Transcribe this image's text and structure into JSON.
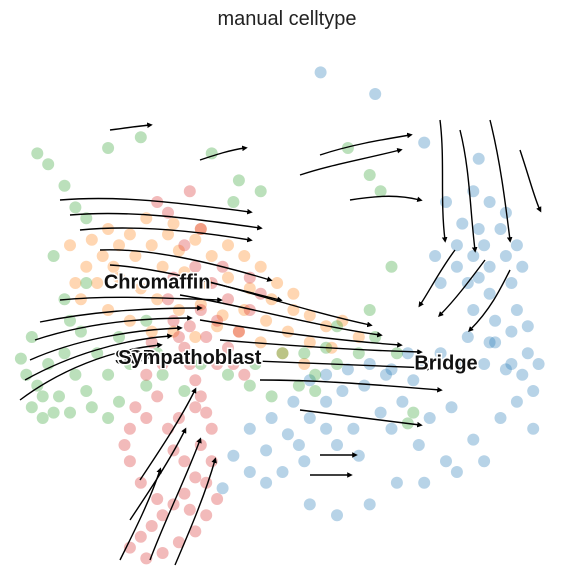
{
  "chart_data": {
    "type": "scatter",
    "title": "manual celltype",
    "xlabel": "",
    "ylabel": "",
    "axes_visible": false,
    "grid": false,
    "legend": "on data",
    "overlay": "velocity streamlines (black arrows)",
    "xlim": [
      0,
      100
    ],
    "ylim": [
      0,
      100
    ],
    "series": [
      {
        "name": "Bridge",
        "color": "#1f77b4",
        "label_position": [
          80,
          40
        ],
        "points": [
          [
            57,
            94
          ],
          [
            67,
            90
          ],
          [
            76,
            81
          ],
          [
            86,
            78
          ],
          [
            85,
            72
          ],
          [
            80,
            70
          ],
          [
            83,
            66
          ],
          [
            88,
            70
          ],
          [
            86,
            65
          ],
          [
            91,
            68
          ],
          [
            78,
            60
          ],
          [
            82,
            62
          ],
          [
            85,
            60
          ],
          [
            88,
            58
          ],
          [
            91,
            60
          ],
          [
            84,
            55
          ],
          [
            88,
            53
          ],
          [
            92,
            55
          ],
          [
            85,
            50
          ],
          [
            89,
            48
          ],
          [
            93,
            50
          ],
          [
            84,
            45
          ],
          [
            88,
            44
          ],
          [
            92,
            46
          ],
          [
            95,
            42
          ],
          [
            79,
            42
          ],
          [
            83,
            40
          ],
          [
            87,
            40
          ],
          [
            91,
            39
          ],
          [
            94,
            38
          ],
          [
            96,
            35
          ],
          [
            73,
            42
          ],
          [
            76,
            40
          ],
          [
            70,
            39
          ],
          [
            74,
            37
          ],
          [
            66,
            40
          ],
          [
            69,
            38
          ],
          [
            62,
            39
          ],
          [
            65,
            36
          ],
          [
            58,
            38
          ],
          [
            61,
            35
          ],
          [
            55,
            37
          ],
          [
            58,
            33
          ],
          [
            52,
            33
          ],
          [
            55,
            30
          ],
          [
            48,
            30
          ],
          [
            51,
            27
          ],
          [
            44,
            28
          ],
          [
            47,
            24
          ],
          [
            41,
            23
          ],
          [
            44,
            20
          ],
          [
            39,
            17
          ],
          [
            50,
            20
          ],
          [
            54,
            22
          ],
          [
            60,
            25
          ],
          [
            64,
            23
          ],
          [
            70,
            28
          ],
          [
            75,
            25
          ],
          [
            80,
            22
          ],
          [
            85,
            26
          ],
          [
            90,
            30
          ],
          [
            93,
            33
          ],
          [
            96,
            28
          ],
          [
            81,
            32
          ],
          [
            77,
            30
          ],
          [
            72,
            33
          ],
          [
            68,
            31
          ],
          [
            63,
            28
          ],
          [
            58,
            28
          ],
          [
            53,
            25
          ],
          [
            47,
            18
          ],
          [
            55,
            14
          ],
          [
            60,
            12
          ],
          [
            66,
            14
          ],
          [
            71,
            18
          ],
          [
            76,
            18
          ],
          [
            82,
            20
          ],
          [
            87,
            22
          ],
          [
            92,
            40
          ],
          [
            95,
            47
          ],
          [
            90,
            65
          ],
          [
            93,
            62
          ],
          [
            94,
            58
          ],
          [
            87,
            62
          ],
          [
            82,
            58
          ],
          [
            79,
            55
          ],
          [
            86,
            56
          ],
          [
            89,
            44
          ],
          [
            97,
            40
          ]
        ]
      },
      {
        "name": "Chromaffin",
        "color": "#ff7f0e",
        "label_position": [
          27,
          55
        ],
        "points": [
          [
            15,
            63
          ],
          [
            18,
            65
          ],
          [
            20,
            62
          ],
          [
            22,
            64
          ],
          [
            17,
            60
          ],
          [
            14,
            58
          ],
          [
            19,
            58
          ],
          [
            23,
            60
          ],
          [
            26,
            62
          ],
          [
            29,
            64
          ],
          [
            31,
            61
          ],
          [
            34,
            63
          ],
          [
            37,
            60
          ],
          [
            40,
            62
          ],
          [
            43,
            60
          ],
          [
            46,
            58
          ],
          [
            49,
            55
          ],
          [
            52,
            53
          ],
          [
            28,
            58
          ],
          [
            32,
            57
          ],
          [
            36,
            55
          ],
          [
            40,
            56
          ],
          [
            44,
            54
          ],
          [
            48,
            52
          ],
          [
            52,
            50
          ],
          [
            55,
            49
          ],
          [
            58,
            47
          ],
          [
            61,
            48
          ],
          [
            64,
            45
          ],
          [
            16,
            55
          ],
          [
            20,
            56
          ],
          [
            24,
            54
          ],
          [
            13,
            52
          ],
          [
            12,
            55
          ],
          [
            27,
            52
          ],
          [
            31,
            50
          ],
          [
            35,
            51
          ],
          [
            39,
            49
          ],
          [
            43,
            50
          ],
          [
            47,
            48
          ],
          [
            51,
            46
          ],
          [
            55,
            44
          ],
          [
            59,
            43
          ],
          [
            30,
            46
          ],
          [
            34,
            45
          ],
          [
            38,
            47
          ],
          [
            42,
            46
          ],
          [
            46,
            44
          ],
          [
            50,
            42
          ],
          [
            54,
            40
          ],
          [
            18,
            50
          ],
          [
            22,
            48
          ],
          [
            26,
            46
          ],
          [
            11,
            62
          ],
          [
            25,
            67
          ],
          [
            30,
            66
          ],
          [
            35,
            65
          ]
        ]
      },
      {
        "name": "SCP",
        "color": "#2ca02c",
        "label_position": [
          23,
          41
        ],
        "points": [
          [
            5,
            79
          ],
          [
            7,
            77
          ],
          [
            18,
            80
          ],
          [
            24,
            82
          ],
          [
            37,
            79
          ],
          [
            42,
            74
          ],
          [
            46,
            72
          ],
          [
            41,
            70
          ],
          [
            62,
            80
          ],
          [
            66,
            75
          ],
          [
            68,
            72
          ],
          [
            70,
            58
          ],
          [
            66,
            50
          ],
          [
            60,
            47
          ],
          [
            58,
            43
          ],
          [
            54,
            42
          ],
          [
            12,
            69
          ],
          [
            10,
            73
          ],
          [
            14,
            67
          ],
          [
            8,
            60
          ],
          [
            10,
            52
          ],
          [
            11,
            48
          ],
          [
            14,
            55
          ],
          [
            4,
            45
          ],
          [
            3,
            38
          ],
          [
            5,
            36
          ],
          [
            7,
            40
          ],
          [
            9,
            34
          ],
          [
            12,
            38
          ],
          [
            14,
            35
          ],
          [
            16,
            42
          ],
          [
            18,
            38
          ],
          [
            20,
            33
          ],
          [
            22,
            40
          ],
          [
            25,
            36
          ],
          [
            27,
            42
          ],
          [
            13,
            46
          ],
          [
            10,
            42
          ],
          [
            6,
            34
          ],
          [
            8,
            31
          ],
          [
            11,
            31
          ],
          [
            15,
            32
          ],
          [
            18,
            30
          ],
          [
            2,
            41
          ],
          [
            4,
            32
          ],
          [
            6,
            30
          ],
          [
            20,
            45
          ],
          [
            25,
            48
          ],
          [
            28,
            38
          ],
          [
            32,
            35
          ],
          [
            35,
            40
          ],
          [
            40,
            38
          ],
          [
            45,
            40
          ],
          [
            50,
            42
          ],
          [
            56,
            35
          ],
          [
            60,
            40
          ],
          [
            64,
            42
          ],
          [
            67,
            45
          ],
          [
            71,
            42
          ],
          [
            73,
            29
          ],
          [
            74,
            31
          ],
          [
            56,
            38
          ],
          [
            44,
            36
          ],
          [
            48,
            34
          ],
          [
            53,
            36
          ]
        ]
      },
      {
        "name": "Sympathoblast",
        "color": "#d62728",
        "label_position": [
          33,
          41
        ],
        "points": [
          [
            27,
            70
          ],
          [
            29,
            68
          ],
          [
            33,
            72
          ],
          [
            35,
            65
          ],
          [
            32,
            62
          ],
          [
            30,
            56
          ],
          [
            29,
            52
          ],
          [
            30,
            48
          ],
          [
            31,
            45
          ],
          [
            32,
            43
          ],
          [
            33,
            40
          ],
          [
            34,
            37
          ],
          [
            35,
            34
          ],
          [
            36,
            31
          ],
          [
            37,
            28
          ],
          [
            34,
            32
          ],
          [
            31,
            30
          ],
          [
            29,
            28
          ],
          [
            27,
            34
          ],
          [
            25,
            30
          ],
          [
            23,
            32
          ],
          [
            22,
            28
          ],
          [
            21,
            25
          ],
          [
            30,
            24
          ],
          [
            32,
            22
          ],
          [
            35,
            25
          ],
          [
            37,
            22
          ],
          [
            34,
            19
          ],
          [
            32,
            16
          ],
          [
            30,
            14
          ],
          [
            28,
            12
          ],
          [
            26,
            10
          ],
          [
            24,
            8
          ],
          [
            22,
            6
          ],
          [
            25,
            4
          ],
          [
            28,
            5
          ],
          [
            31,
            7
          ],
          [
            34,
            9
          ],
          [
            36,
            12
          ],
          [
            38,
            15
          ],
          [
            36,
            18
          ],
          [
            33,
            13
          ],
          [
            27,
            15
          ],
          [
            24,
            18
          ],
          [
            22,
            22
          ],
          [
            38,
            40
          ],
          [
            40,
            43
          ],
          [
            42,
            46
          ],
          [
            44,
            50
          ],
          [
            46,
            53
          ],
          [
            44,
            56
          ],
          [
            40,
            52
          ],
          [
            38,
            48
          ],
          [
            36,
            45
          ],
          [
            35,
            50
          ],
          [
            37,
            55
          ],
          [
            39,
            58
          ],
          [
            34,
            58
          ],
          [
            28,
            40
          ],
          [
            26,
            44
          ],
          [
            25,
            38
          ],
          [
            33,
            47
          ],
          [
            41,
            40
          ],
          [
            43,
            38
          ]
        ]
      }
    ]
  }
}
